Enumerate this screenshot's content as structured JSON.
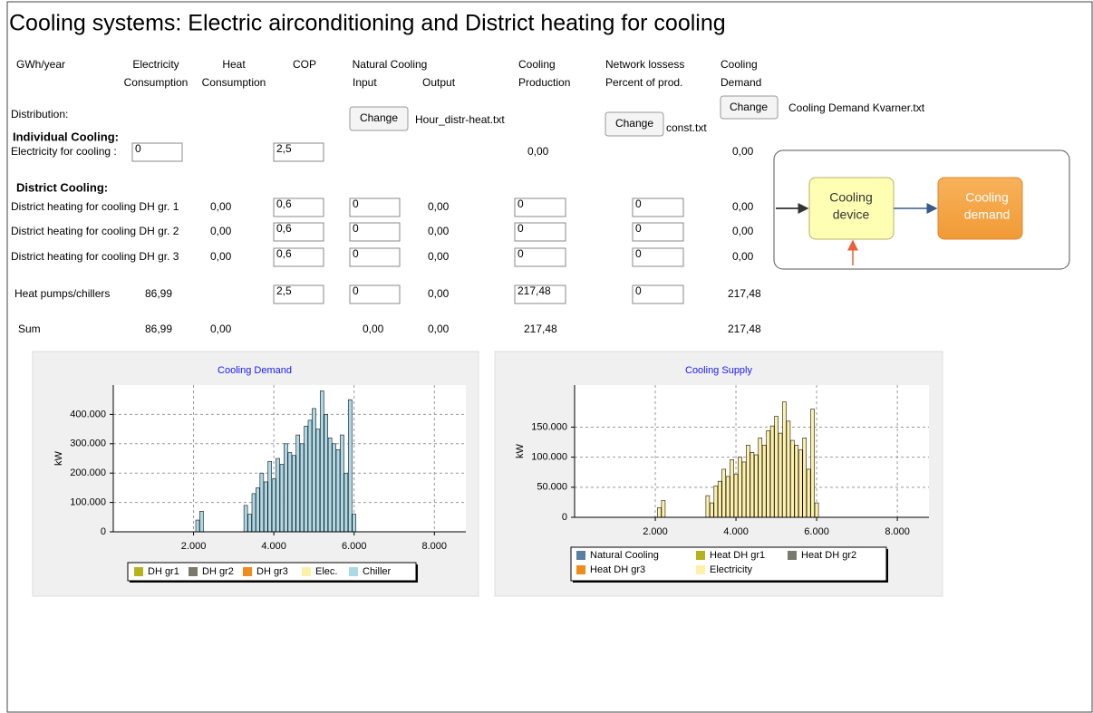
{
  "title": "Cooling systems: Electric airconditioning and District heating for cooling",
  "header": {
    "unit": "GWh/year",
    "electricity": [
      "Electricity",
      "Consumption"
    ],
    "heat": [
      "Heat",
      "Consumption"
    ],
    "cop": "COP",
    "natural": "Natural Cooling",
    "input": "Input",
    "output": "Output",
    "production": [
      "Cooling",
      "Production"
    ],
    "losses": [
      "Network lossess",
      "Percent of prod."
    ],
    "demand": [
      "Cooling",
      "Demand"
    ]
  },
  "distribution": {
    "label": "Distribution:",
    "natural_button": "Change",
    "natural_file": "Hour_distr-heat.txt",
    "losses_button": "Change",
    "losses_file": "const.txt",
    "demand_button": "Change",
    "demand_file": "Cooling Demand Kvarner.txt"
  },
  "individual": {
    "heading": "Individual Cooling:",
    "label": "Electricity for cooling :",
    "electricity": "0",
    "cop": "2,5",
    "production": "0,00",
    "demand": "0,00"
  },
  "district": {
    "heading": "District Cooling:",
    "rows": [
      {
        "label": "District heating for cooling DH gr. 1",
        "heat": "0,00",
        "cop": "0,6",
        "input": "0",
        "output": "0,00",
        "production": "0",
        "losses": "0",
        "demand": "0,00"
      },
      {
        "label": "District heating for cooling DH gr. 2",
        "heat": "0,00",
        "cop": "0,6",
        "input": "0",
        "output": "0,00",
        "production": "0",
        "losses": "0",
        "demand": "0,00"
      },
      {
        "label": "District heating for cooling DH gr. 3",
        "heat": "0,00",
        "cop": "0,6",
        "input": "0",
        "output": "0,00",
        "production": "0",
        "losses": "0",
        "demand": "0,00"
      }
    ]
  },
  "heat_pumps": {
    "label": "Heat pumps/chillers",
    "electricity": "86,99",
    "cop": "2,5",
    "input": "0",
    "output": "0,00",
    "production": "217,48",
    "losses": "0",
    "demand": "217,48"
  },
  "sum": {
    "label": "Sum",
    "electricity": "86,99",
    "heat": "0,00",
    "input": "0,00",
    "output": "0,00",
    "production": "217,48",
    "demand": "217,48"
  },
  "diagram": {
    "device": [
      "Cooling",
      "device"
    ],
    "demand": [
      "Cooling",
      "demand"
    ]
  },
  "chart_data": [
    {
      "type": "bar",
      "stacked": true,
      "title": "Cooling Demand",
      "y_label": "kW",
      "grid": true,
      "legend": "bottom",
      "x": [
        2100,
        2200,
        3300,
        3400,
        3500,
        3600,
        3700,
        3800,
        3900,
        4000,
        4100,
        4200,
        4300,
        4400,
        4500,
        4600,
        4700,
        4800,
        4900,
        5000,
        5100,
        5200,
        5300,
        5400,
        5500,
        5600,
        5700,
        5800,
        5900,
        6000
      ],
      "xlim": [
        0,
        8784
      ],
      "ylim": [
        0,
        500000
      ],
      "xticks": [
        {
          "value": 2000,
          "label": "2.000"
        },
        {
          "value": 4000,
          "label": "4.000"
        },
        {
          "value": 6000,
          "label": "6.000"
        },
        {
          "value": 8000,
          "label": "8.000"
        }
      ],
      "yticks": [
        0,
        {
          "value": 100000,
          "label": "100.000"
        },
        {
          "value": 200000,
          "label": "200.000"
        },
        {
          "value": 300000,
          "label": "300.000"
        },
        {
          "value": 400000,
          "label": "400.000"
        }
      ],
      "series": [
        {
          "name": "DH gr1",
          "color": "#b5b21e",
          "values": [
            0,
            0,
            0,
            0,
            0,
            0,
            0,
            0,
            0,
            0,
            0,
            0,
            0,
            0,
            0,
            0,
            0,
            0,
            0,
            0,
            0,
            0,
            0,
            0,
            0,
            0,
            0,
            0,
            0,
            0
          ]
        },
        {
          "name": "DH gr2",
          "color": "#7a7a6a",
          "values": [
            0,
            0,
            0,
            0,
            0,
            0,
            0,
            0,
            0,
            0,
            0,
            0,
            0,
            0,
            0,
            0,
            0,
            0,
            0,
            0,
            0,
            0,
            0,
            0,
            0,
            0,
            0,
            0,
            0,
            0
          ]
        },
        {
          "name": "DH gr3",
          "color": "#f08c1c",
          "values": [
            0,
            0,
            0,
            0,
            0,
            0,
            0,
            0,
            0,
            0,
            0,
            0,
            0,
            0,
            0,
            0,
            0,
            0,
            0,
            0,
            0,
            0,
            0,
            0,
            0,
            0,
            0,
            0,
            0,
            0
          ]
        },
        {
          "name": "Elec.",
          "color": "#fdf0a8",
          "values": [
            0,
            0,
            0,
            0,
            0,
            0,
            0,
            0,
            0,
            0,
            0,
            0,
            0,
            0,
            0,
            0,
            0,
            0,
            0,
            0,
            0,
            0,
            0,
            0,
            0,
            0,
            0,
            0,
            0,
            0
          ]
        },
        {
          "name": "Chiller",
          "color": "#add8e6",
          "values": [
            40000,
            70000,
            90000,
            60000,
            130000,
            150000,
            200000,
            170000,
            240000,
            180000,
            250000,
            230000,
            300000,
            270000,
            260000,
            330000,
            300000,
            360000,
            380000,
            420000,
            350000,
            480000,
            400000,
            320000,
            300000,
            280000,
            330000,
            200000,
            450000,
            60000
          ]
        }
      ]
    },
    {
      "type": "bar",
      "stacked": true,
      "title": "Cooling Supply",
      "y_label": "kW",
      "grid": true,
      "legend": "bottom",
      "x": [
        2100,
        2200,
        3300,
        3400,
        3500,
        3600,
        3700,
        3800,
        3900,
        4000,
        4100,
        4200,
        4300,
        4400,
        4500,
        4600,
        4700,
        4800,
        4900,
        5000,
        5100,
        5200,
        5300,
        5400,
        5500,
        5600,
        5700,
        5800,
        5900,
        6000
      ],
      "xlim": [
        0,
        8784
      ],
      "ylim": [
        0,
        220000
      ],
      "xticks": [
        {
          "value": 2000,
          "label": "2.000"
        },
        {
          "value": 4000,
          "label": "4.000"
        },
        {
          "value": 6000,
          "label": "6.000"
        },
        {
          "value": 8000,
          "label": "8.000"
        }
      ],
      "yticks": [
        0,
        {
          "value": 50000,
          "label": "50.000"
        },
        {
          "value": 100000,
          "label": "100.000"
        },
        {
          "value": 150000,
          "label": "150.000"
        }
      ],
      "series": [
        {
          "name": "Natural Cooling",
          "color": "#5b7fa3",
          "values": [
            0,
            0,
            0,
            0,
            0,
            0,
            0,
            0,
            0,
            0,
            0,
            0,
            0,
            0,
            0,
            0,
            0,
            0,
            0,
            0,
            0,
            0,
            0,
            0,
            0,
            0,
            0,
            0,
            0,
            0
          ]
        },
        {
          "name": "Heat DH gr1",
          "color": "#b5b21e",
          "values": [
            0,
            0,
            0,
            0,
            0,
            0,
            0,
            0,
            0,
            0,
            0,
            0,
            0,
            0,
            0,
            0,
            0,
            0,
            0,
            0,
            0,
            0,
            0,
            0,
            0,
            0,
            0,
            0,
            0,
            0
          ]
        },
        {
          "name": "Heat DH gr2",
          "color": "#7a7a6a",
          "values": [
            0,
            0,
            0,
            0,
            0,
            0,
            0,
            0,
            0,
            0,
            0,
            0,
            0,
            0,
            0,
            0,
            0,
            0,
            0,
            0,
            0,
            0,
            0,
            0,
            0,
            0,
            0,
            0,
            0,
            0
          ]
        },
        {
          "name": "Heat DH gr3",
          "color": "#f08c1c",
          "values": [
            0,
            0,
            0,
            0,
            0,
            0,
            0,
            0,
            0,
            0,
            0,
            0,
            0,
            0,
            0,
            0,
            0,
            0,
            0,
            0,
            0,
            0,
            0,
            0,
            0,
            0,
            0,
            0,
            0,
            0
          ]
        },
        {
          "name": "Electricity",
          "color": "#fdf0a8",
          "values": [
            16000,
            28000,
            36000,
            24000,
            52000,
            60000,
            80000,
            68000,
            96000,
            72000,
            100000,
            92000,
            120000,
            108000,
            104000,
            132000,
            120000,
            144000,
            152000,
            168000,
            140000,
            192000,
            160000,
            128000,
            120000,
            112000,
            132000,
            80000,
            180000,
            24000
          ]
        }
      ]
    }
  ]
}
